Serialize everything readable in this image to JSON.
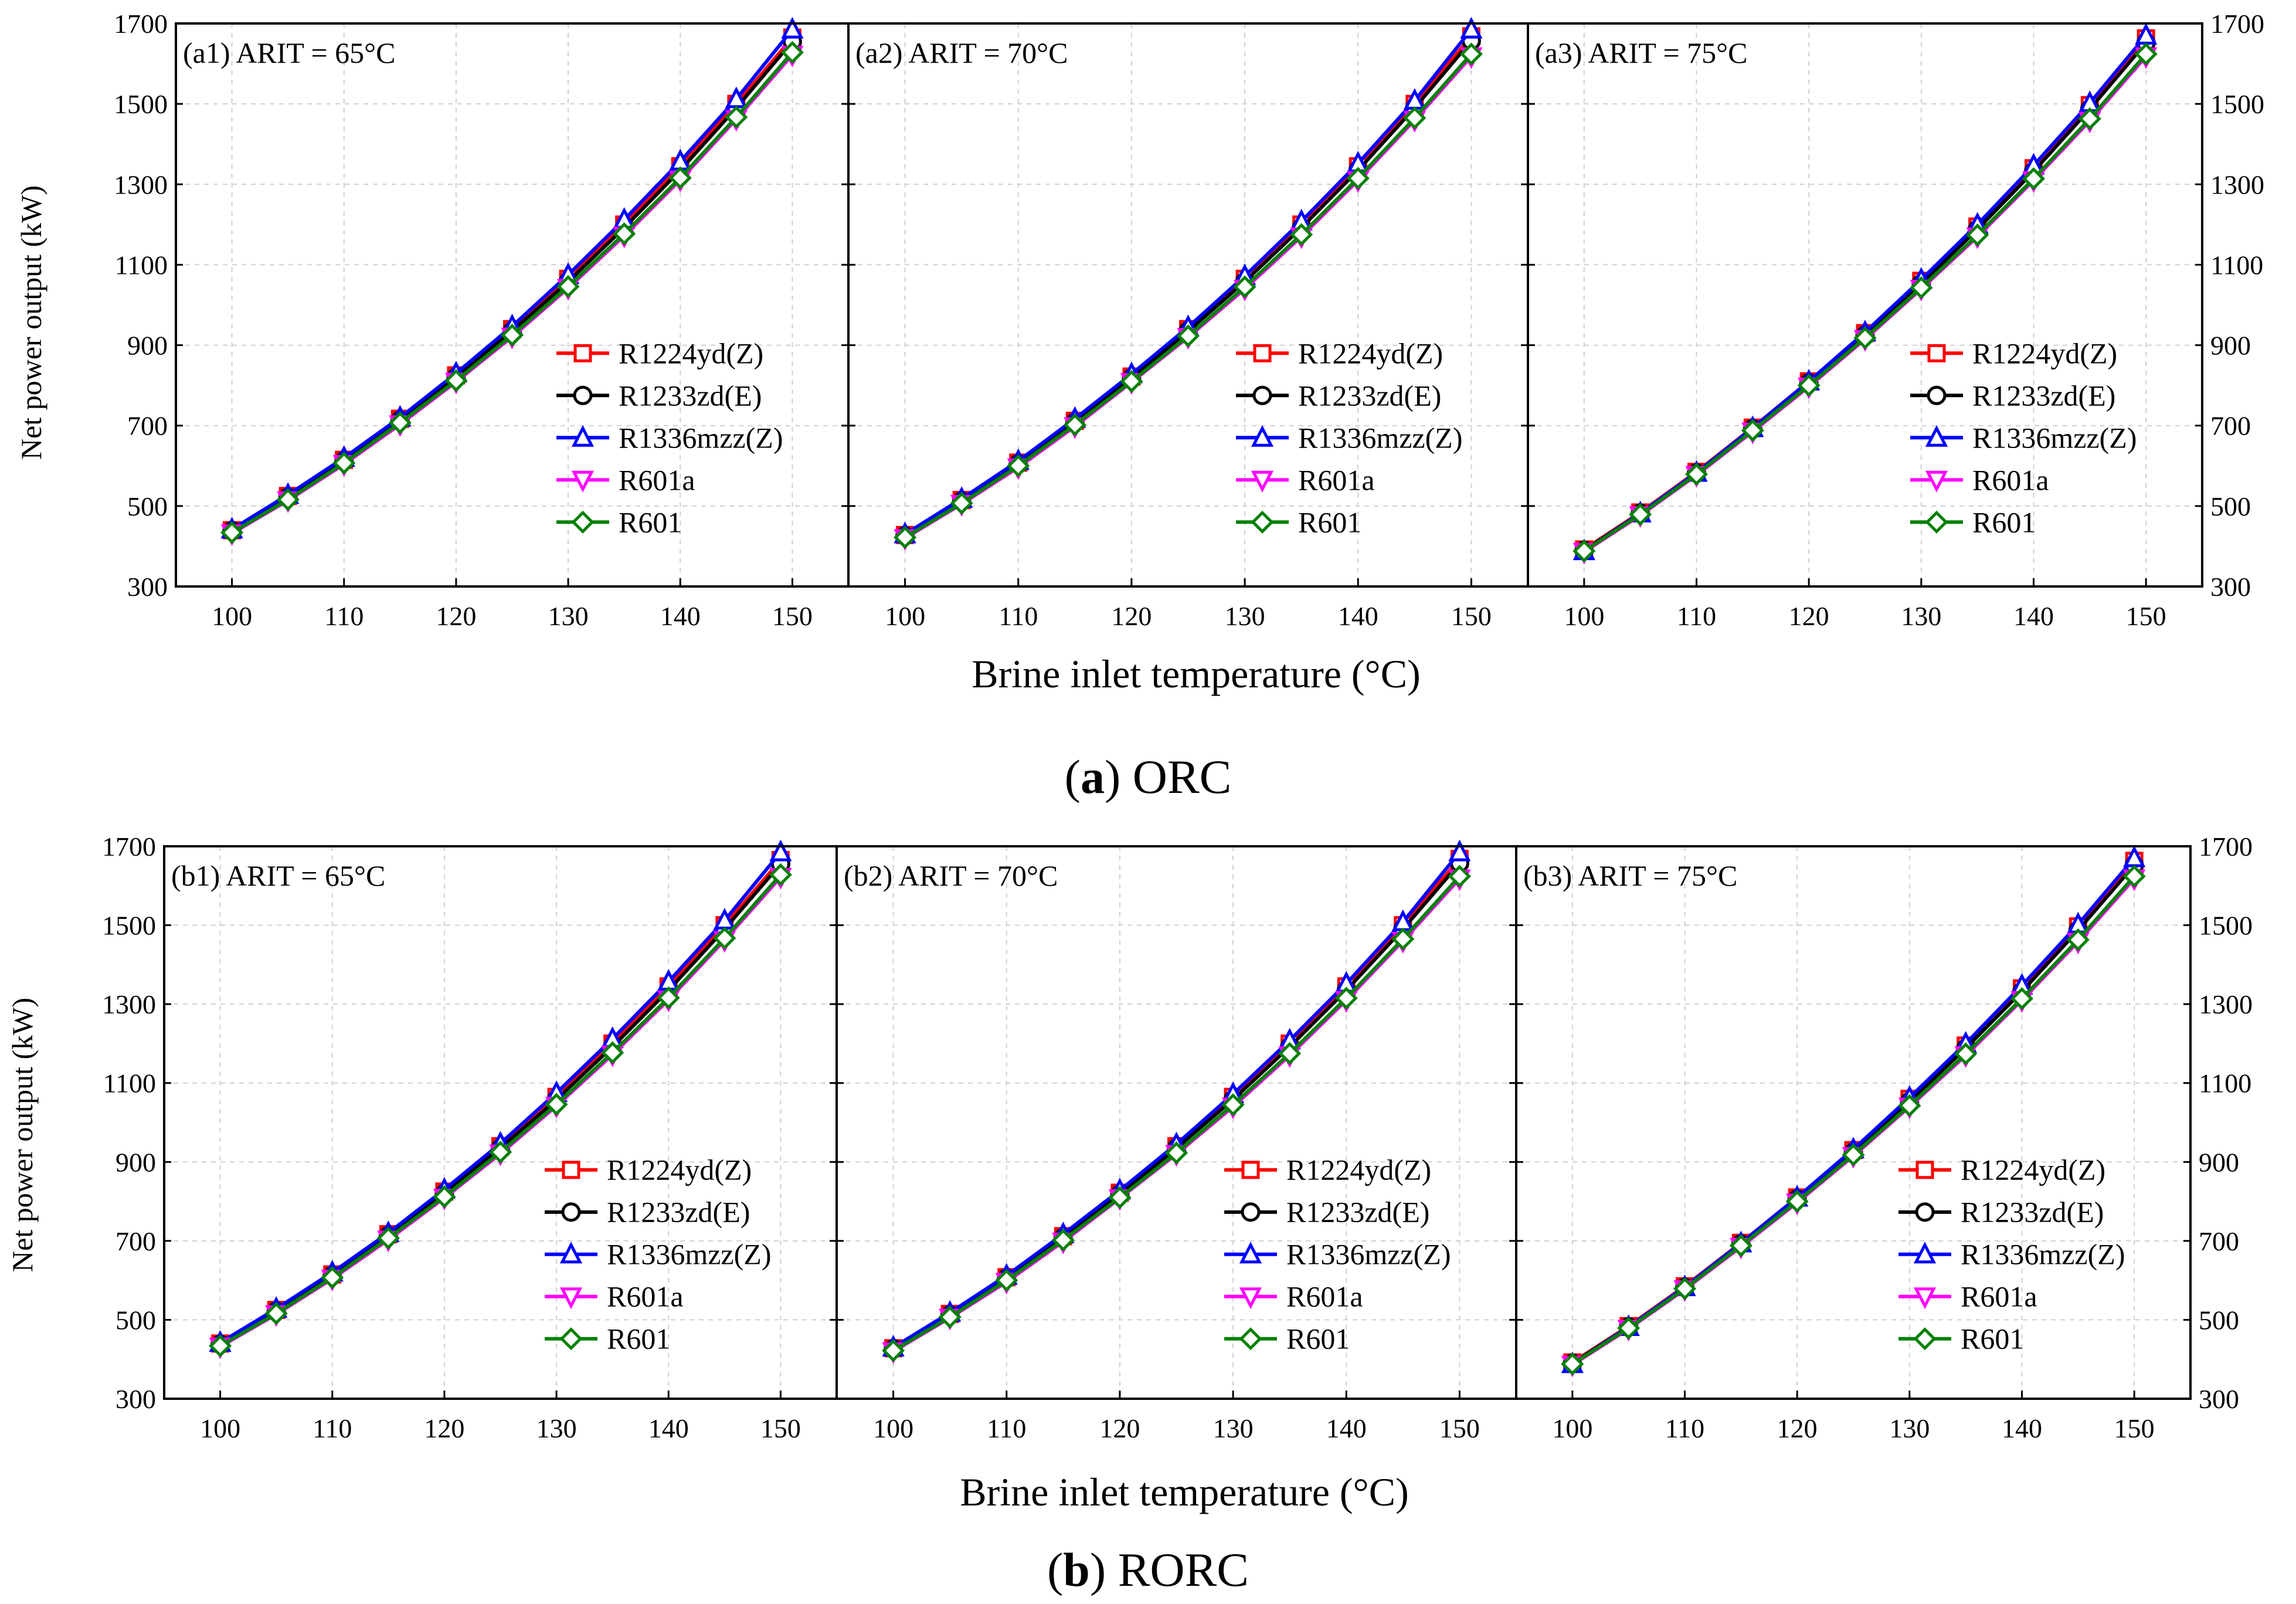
{
  "figure": {
    "row_a_caption_letter": "a",
    "row_a_caption_text": "ORC",
    "row_b_caption_letter": "b",
    "row_b_caption_text": "RORC",
    "xlabel": "Brine inlet temperature (°C)",
    "ylabel": "Net power output (kW)"
  },
  "series_style": [
    {
      "name": "R1224yd(Z)",
      "color": "#ff0000",
      "marker": "square"
    },
    {
      "name": "R1233zd(E)",
      "color": "#000000",
      "marker": "circle"
    },
    {
      "name": "R1336mzz(Z)",
      "color": "#0000ff",
      "marker": "triangle-up"
    },
    {
      "name": "R601a",
      "color": "#ff00ff",
      "marker": "triangle-down"
    },
    {
      "name": "R601",
      "color": "#008000",
      "marker": "diamond"
    }
  ],
  "chart_data": [
    {
      "type": "line",
      "panel": "a1",
      "title": "(a1) ARIT = 65°C",
      "xlabel": "Brine inlet temperature (°C)",
      "ylabel": "Net power output (kW)",
      "xlim": [
        95,
        155
      ],
      "ylim": [
        300,
        1700
      ],
      "xticks": [
        100,
        110,
        120,
        130,
        140,
        150
      ],
      "yticks": [
        300,
        500,
        700,
        900,
        1100,
        1300,
        1500,
        1700
      ],
      "x": [
        100,
        105,
        110,
        115,
        120,
        125,
        130,
        135,
        140,
        145,
        150
      ],
      "series": [
        {
          "name": "R1224yd(Z)",
          "values": [
            440,
            525,
            615,
            717,
            825,
            940,
            1065,
            1200,
            1345,
            1500,
            1665
          ]
        },
        {
          "name": "R1233zd(E)",
          "values": [
            438,
            522,
            612,
            713,
            820,
            935,
            1058,
            1192,
            1335,
            1490,
            1655
          ]
        },
        {
          "name": "R1336mzz(Z)",
          "values": [
            442,
            528,
            620,
            720,
            830,
            947,
            1075,
            1212,
            1357,
            1512,
            1685
          ]
        },
        {
          "name": "R601a",
          "values": [
            432,
            514,
            604,
            703,
            809,
            921,
            1042,
            1172,
            1311,
            1462,
            1622
          ]
        },
        {
          "name": "R601",
          "values": [
            434,
            516,
            607,
            707,
            812,
            925,
            1046,
            1177,
            1316,
            1467,
            1628
          ]
        }
      ],
      "legend": "lower-right"
    },
    {
      "type": "line",
      "panel": "a2",
      "title": "(a2) ARIT = 70°C",
      "xlabel": "Brine inlet temperature (°C)",
      "ylabel": "Net power output (kW)",
      "xlim": [
        95,
        155
      ],
      "ylim": [
        300,
        1700
      ],
      "xticks": [
        100,
        110,
        120,
        130,
        140,
        150
      ],
      "yticks": [
        300,
        500,
        700,
        900,
        1100,
        1300,
        1500,
        1700
      ],
      "x": [
        100,
        105,
        110,
        115,
        120,
        125,
        130,
        135,
        140,
        145,
        150
      ],
      "series": [
        {
          "name": "R1224yd(Z)",
          "values": [
            428,
            515,
            608,
            712,
            822,
            940,
            1065,
            1200,
            1345,
            1500,
            1668
          ]
        },
        {
          "name": "R1233zd(E)",
          "values": [
            426,
            512,
            605,
            708,
            818,
            935,
            1058,
            1192,
            1335,
            1490,
            1657
          ]
        },
        {
          "name": "R1336mzz(Z)",
          "values": [
            430,
            518,
            612,
            717,
            828,
            945,
            1072,
            1208,
            1352,
            1508,
            1685
          ]
        },
        {
          "name": "R601a",
          "values": [
            420,
            505,
            596,
            698,
            808,
            920,
            1040,
            1170,
            1310,
            1460,
            1618
          ]
        },
        {
          "name": "R601",
          "values": [
            422,
            507,
            600,
            702,
            810,
            923,
            1045,
            1175,
            1315,
            1465,
            1624
          ]
        }
      ],
      "legend": "lower-right"
    },
    {
      "type": "line",
      "panel": "a3",
      "title": "(a3) ARIT = 75°C",
      "xlabel": "Brine inlet temperature (°C)",
      "ylabel": "Net power output (kW)",
      "xlim": [
        95,
        155
      ],
      "ylim": [
        300,
        1700
      ],
      "xticks": [
        100,
        110,
        120,
        130,
        140,
        150
      ],
      "yticks": [
        300,
        500,
        700,
        900,
        1100,
        1300,
        1500,
        1700
      ],
      "x": [
        100,
        105,
        110,
        115,
        120,
        125,
        130,
        135,
        140,
        145,
        150
      ],
      "series": [
        {
          "name": "R1224yd(Z)",
          "values": [
            392,
            484,
            585,
            695,
            810,
            930,
            1060,
            1195,
            1340,
            1497,
            1663
          ]
        },
        {
          "name": "R1233zd(E)",
          "values": [
            390,
            482,
            582,
            692,
            806,
            925,
            1053,
            1188,
            1332,
            1487,
            1652
          ]
        },
        {
          "name": "R1336mzz(Z)",
          "values": [
            388,
            482,
            583,
            694,
            810,
            932,
            1063,
            1200,
            1347,
            1502,
            1670
          ]
        },
        {
          "name": "R601a",
          "values": [
            386,
            477,
            577,
            685,
            797,
            915,
            1040,
            1170,
            1310,
            1458,
            1618
          ]
        },
        {
          "name": "R601",
          "values": [
            388,
            479,
            579,
            688,
            800,
            918,
            1043,
            1174,
            1314,
            1463,
            1624
          ]
        }
      ],
      "legend": "lower-right"
    },
    {
      "type": "line",
      "panel": "b1",
      "title": "(b1) ARIT = 65°C",
      "xlabel": "Brine inlet temperature (°C)",
      "ylabel": "Net power output (kW)",
      "xlim": [
        95,
        155
      ],
      "ylim": [
        300,
        1700
      ],
      "xticks": [
        100,
        110,
        120,
        130,
        140,
        150
      ],
      "yticks": [
        300,
        500,
        700,
        900,
        1100,
        1300,
        1500,
        1700
      ],
      "x": [
        100,
        105,
        110,
        115,
        120,
        125,
        130,
        135,
        140,
        145,
        150
      ],
      "series": [
        {
          "name": "R1224yd(Z)",
          "values": [
            440,
            525,
            615,
            717,
            825,
            940,
            1065,
            1200,
            1345,
            1500,
            1665
          ]
        },
        {
          "name": "R1233zd(E)",
          "values": [
            438,
            522,
            612,
            713,
            820,
            935,
            1058,
            1192,
            1335,
            1490,
            1655
          ]
        },
        {
          "name": "R1336mzz(Z)",
          "values": [
            442,
            528,
            620,
            720,
            830,
            947,
            1075,
            1212,
            1357,
            1512,
            1685
          ]
        },
        {
          "name": "R601a",
          "values": [
            432,
            514,
            604,
            703,
            809,
            921,
            1042,
            1172,
            1311,
            1462,
            1622
          ]
        },
        {
          "name": "R601",
          "values": [
            434,
            516,
            607,
            707,
            812,
            925,
            1046,
            1177,
            1316,
            1467,
            1628
          ]
        }
      ],
      "legend": "lower-right"
    },
    {
      "type": "line",
      "panel": "b2",
      "title": "(b2) ARIT = 70°C",
      "xlabel": "Brine inlet temperature (°C)",
      "ylabel": "Net power output (kW)",
      "xlim": [
        95,
        155
      ],
      "ylim": [
        300,
        1700
      ],
      "xticks": [
        100,
        110,
        120,
        130,
        140,
        150
      ],
      "yticks": [
        300,
        500,
        700,
        900,
        1100,
        1300,
        1500,
        1700
      ],
      "x": [
        100,
        105,
        110,
        115,
        120,
        125,
        130,
        135,
        140,
        145,
        150
      ],
      "series": [
        {
          "name": "R1224yd(Z)",
          "values": [
            428,
            515,
            608,
            712,
            822,
            940,
            1065,
            1200,
            1345,
            1500,
            1668
          ]
        },
        {
          "name": "R1233zd(E)",
          "values": [
            426,
            512,
            605,
            708,
            818,
            935,
            1058,
            1192,
            1335,
            1490,
            1657
          ]
        },
        {
          "name": "R1336mzz(Z)",
          "values": [
            430,
            518,
            612,
            717,
            828,
            945,
            1072,
            1208,
            1352,
            1508,
            1685
          ]
        },
        {
          "name": "R601a",
          "values": [
            420,
            505,
            596,
            698,
            808,
            920,
            1040,
            1170,
            1310,
            1460,
            1618
          ]
        },
        {
          "name": "R601",
          "values": [
            422,
            507,
            600,
            702,
            810,
            923,
            1045,
            1175,
            1315,
            1465,
            1624
          ]
        }
      ],
      "legend": "lower-right"
    },
    {
      "type": "line",
      "panel": "b3",
      "title": "(b3) ARIT = 75°C",
      "xlabel": "Brine inlet temperature (°C)",
      "ylabel": "Net power output (kW)",
      "xlim": [
        95,
        155
      ],
      "ylim": [
        300,
        1700
      ],
      "xticks": [
        100,
        110,
        120,
        130,
        140,
        150
      ],
      "yticks": [
        300,
        500,
        700,
        900,
        1100,
        1300,
        1500,
        1700
      ],
      "x": [
        100,
        105,
        110,
        115,
        120,
        125,
        130,
        135,
        140,
        145,
        150
      ],
      "series": [
        {
          "name": "R1224yd(Z)",
          "values": [
            392,
            484,
            585,
            695,
            810,
            930,
            1060,
            1195,
            1340,
            1497,
            1663
          ]
        },
        {
          "name": "R1233zd(E)",
          "values": [
            390,
            482,
            582,
            692,
            806,
            925,
            1053,
            1188,
            1332,
            1487,
            1652
          ]
        },
        {
          "name": "R1336mzz(Z)",
          "values": [
            388,
            482,
            583,
            694,
            810,
            932,
            1063,
            1200,
            1347,
            1502,
            1670
          ]
        },
        {
          "name": "R601a",
          "values": [
            386,
            477,
            577,
            685,
            797,
            915,
            1040,
            1170,
            1310,
            1458,
            1618
          ]
        },
        {
          "name": "R601",
          "values": [
            388,
            479,
            579,
            688,
            800,
            918,
            1043,
            1174,
            1314,
            1463,
            1624
          ]
        }
      ],
      "legend": "lower-right"
    }
  ]
}
